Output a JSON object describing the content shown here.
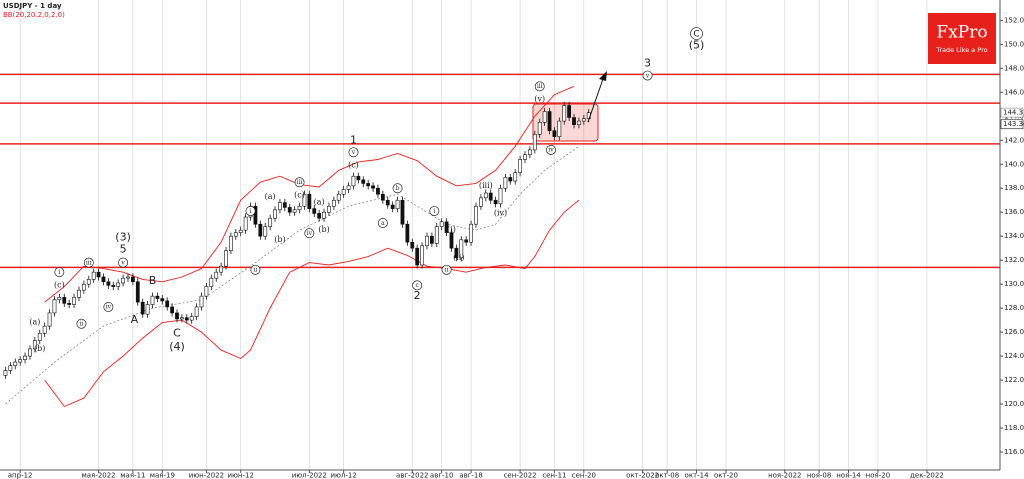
{
  "chart_data": {
    "type": "candlestick",
    "title": "USDJPY - 1 day",
    "subtitle": "BB(20,20.2,0,2.0)",
    "logo": {
      "name": "FxPro",
      "tagline": "Trade Like a Pro"
    },
    "open": [
      122.4,
      122.8,
      123.2,
      123.5,
      123.7,
      124.0,
      124.6,
      125.3,
      125.9,
      126.5,
      127.6,
      128.7,
      128.9,
      128.4,
      128.3,
      128.9,
      129.5,
      130.0,
      130.4,
      131.0,
      130.6,
      130.2,
      129.9,
      129.8,
      130.1,
      130.5,
      130.6,
      130.2,
      128.5,
      127.5,
      128.3,
      129.0,
      128.8,
      128.6,
      128.1,
      127.6,
      127.1,
      127.2,
      127.0,
      127.3,
      128.1,
      129.0,
      129.8,
      130.5,
      131.0,
      131.5,
      132.8,
      134.0,
      134.3,
      134.5,
      135.6,
      136.5,
      135.0,
      134.0,
      134.8,
      135.5,
      136.2,
      136.8,
      136.4,
      136.0,
      136.2,
      136.5,
      137.5,
      136.3,
      135.9,
      135.5,
      136.0,
      136.5,
      137.0,
      137.5,
      137.9,
      138.2,
      139.0,
      138.7,
      138.4,
      138.2,
      138.0,
      137.5,
      137.0,
      136.6,
      136.3,
      137.0,
      135.0,
      133.5,
      133.0,
      131.6,
      133.2,
      134.0,
      133.4,
      134.8,
      135.2,
      134.3,
      133.0,
      132.2,
      133.7,
      133.5,
      135.0,
      136.5,
      137.2,
      137.6,
      137.0,
      136.7,
      138.0,
      138.9,
      138.6,
      139.3,
      140.4,
      140.8,
      141.2,
      142.5,
      143.5,
      144.4,
      142.8,
      142.3,
      143.6,
      144.9,
      143.9,
      143.3,
      143.6,
      143.8
    ],
    "high": [
      123.1,
      123.5,
      123.8,
      124.0,
      124.3,
      124.9,
      125.6,
      126.2,
      126.8,
      127.9,
      129.0,
      129.2,
      129.2,
      128.7,
      129.2,
      129.8,
      130.3,
      130.7,
      131.3,
      131.3,
      130.9,
      130.5,
      130.2,
      130.4,
      130.8,
      130.9,
      130.9,
      130.5,
      128.8,
      128.6,
      129.3,
      129.3,
      129.1,
      128.9,
      128.4,
      127.9,
      127.5,
      127.5,
      127.6,
      128.4,
      129.3,
      130.1,
      130.8,
      131.3,
      131.8,
      133.1,
      134.3,
      134.6,
      134.8,
      135.9,
      136.8,
      136.8,
      135.3,
      135.1,
      135.8,
      136.5,
      137.1,
      137.1,
      136.7,
      136.5,
      136.8,
      137.8,
      137.8,
      136.6,
      136.2,
      136.3,
      136.8,
      137.3,
      137.8,
      138.2,
      138.5,
      139.3,
      139.3,
      139.0,
      138.7,
      138.5,
      138.3,
      137.8,
      137.3,
      136.9,
      137.3,
      137.3,
      135.3,
      133.8,
      133.3,
      133.5,
      134.3,
      134.3,
      135.1,
      135.5,
      135.5,
      134.6,
      133.3,
      134.0,
      134.0,
      135.3,
      136.8,
      137.5,
      137.9,
      137.9,
      137.3,
      138.3,
      139.2,
      139.2,
      139.6,
      140.7,
      141.1,
      141.5,
      142.8,
      143.8,
      144.7,
      144.7,
      143.1,
      143.9,
      145.2,
      145.2,
      144.2,
      143.9,
      144.1,
      144.6
    ],
    "low": [
      122.1,
      122.5,
      122.9,
      123.2,
      123.4,
      123.7,
      124.3,
      125.0,
      125.6,
      126.2,
      127.3,
      128.4,
      128.1,
      128.0,
      128.0,
      128.6,
      129.2,
      129.7,
      130.1,
      130.3,
      129.9,
      129.6,
      129.5,
      129.5,
      129.8,
      130.2,
      129.9,
      128.2,
      127.2,
      127.2,
      128.0,
      128.5,
      128.3,
      127.8,
      127.3,
      126.8,
      126.8,
      126.7,
      126.7,
      127.0,
      127.8,
      128.7,
      129.5,
      130.2,
      130.7,
      131.2,
      132.5,
      133.7,
      134.0,
      134.2,
      135.3,
      134.7,
      133.7,
      133.7,
      134.5,
      135.2,
      135.9,
      136.1,
      135.7,
      135.7,
      135.9,
      136.2,
      136.0,
      135.6,
      135.2,
      135.2,
      135.7,
      136.2,
      136.7,
      137.2,
      137.6,
      137.9,
      138.4,
      138.1,
      137.9,
      137.7,
      137.2,
      136.7,
      136.3,
      136.0,
      136.0,
      134.7,
      133.2,
      132.7,
      131.3,
      131.3,
      132.9,
      133.1,
      133.1,
      134.5,
      134.0,
      132.7,
      131.9,
      131.9,
      133.2,
      133.2,
      134.7,
      136.2,
      136.9,
      136.7,
      136.4,
      136.4,
      137.7,
      138.3,
      138.3,
      139.0,
      140.1,
      140.5,
      140.9,
      142.2,
      143.2,
      142.5,
      142.0,
      142.0,
      143.3,
      143.6,
      143.0,
      143.0,
      143.3,
      143.5
    ],
    "close": [
      122.8,
      123.2,
      123.5,
      123.7,
      124.0,
      124.6,
      125.3,
      125.9,
      126.5,
      127.6,
      128.7,
      128.9,
      128.4,
      128.3,
      128.9,
      129.5,
      130.0,
      130.4,
      131.0,
      130.6,
      130.2,
      129.9,
      129.8,
      130.1,
      130.5,
      130.6,
      130.2,
      128.5,
      127.5,
      128.3,
      129.0,
      128.8,
      128.6,
      128.1,
      127.6,
      127.1,
      127.2,
      127.0,
      127.3,
      128.1,
      129.0,
      129.8,
      130.5,
      131.0,
      131.5,
      132.8,
      134.0,
      134.3,
      134.5,
      135.6,
      136.5,
      135.0,
      134.0,
      134.8,
      135.5,
      136.2,
      136.8,
      136.4,
      136.0,
      136.2,
      136.5,
      137.5,
      136.3,
      135.9,
      135.5,
      136.0,
      136.5,
      137.0,
      137.5,
      137.9,
      138.2,
      139.0,
      138.7,
      138.4,
      138.2,
      138.0,
      137.5,
      137.0,
      136.6,
      136.3,
      137.0,
      135.0,
      133.5,
      133.0,
      131.6,
      133.2,
      134.0,
      133.4,
      134.8,
      135.2,
      134.3,
      133.0,
      132.2,
      133.7,
      133.5,
      135.0,
      136.5,
      137.2,
      137.6,
      137.0,
      136.7,
      138.0,
      138.9,
      138.6,
      139.3,
      140.4,
      140.8,
      141.2,
      142.5,
      143.5,
      144.4,
      142.8,
      142.3,
      143.6,
      144.9,
      143.9,
      143.3,
      143.6,
      143.8,
      144.3
    ],
    "up_color": "#ffffff",
    "down_color": "#111111",
    "bollinger": {
      "upper": {
        "color": "#e8201c",
        "x": [
          8,
          12,
          16,
          20,
          24,
          28,
          32,
          36,
          40,
          44,
          48,
          52,
          56,
          60,
          64,
          68,
          72,
          76,
          80,
          84,
          88,
          92,
          96,
          100,
          104,
          108,
          112,
          116
        ],
        "values": [
          128.5,
          129.8,
          131.5,
          131.3,
          131.0,
          130.4,
          130.2,
          130.6,
          131.3,
          133.5,
          137.0,
          138.5,
          139.0,
          138.3,
          138.1,
          139.5,
          140.2,
          140.4,
          140.9,
          140.3,
          139.0,
          138.2,
          138.4,
          139.5,
          141.5,
          144.0,
          145.8,
          146.5
        ]
      },
      "middle": {
        "color": "#777777",
        "x": [
          0,
          10,
          20,
          30,
          40,
          50,
          60,
          70,
          80,
          84,
          90,
          96,
          100,
          105,
          110,
          117
        ],
        "values": [
          120.0,
          123.5,
          126.5,
          128.0,
          128.7,
          131.5,
          134.5,
          136.5,
          137.5,
          136.5,
          135.0,
          134.5,
          135.0,
          137.5,
          139.5,
          141.5
        ]
      },
      "lower": {
        "color": "#e8201c",
        "x": [
          8,
          12,
          16,
          20,
          24,
          28,
          32,
          36,
          40,
          44,
          48,
          50,
          54,
          58,
          62,
          66,
          70,
          74,
          78,
          82,
          86,
          90,
          94,
          98,
          102,
          106,
          108,
          111,
          114,
          117
        ],
        "values": [
          122.0,
          119.8,
          120.5,
          122.7,
          124.0,
          125.5,
          126.8,
          127.0,
          126.0,
          124.5,
          123.8,
          124.5,
          128.0,
          131.0,
          131.8,
          131.6,
          131.9,
          132.3,
          133.0,
          132.4,
          131.5,
          131.3,
          131.0,
          131.4,
          131.6,
          131.3,
          132.3,
          134.5,
          136.0,
          137.0
        ]
      }
    },
    "levels": [
      147.5,
      145.1,
      141.7,
      131.4
    ],
    "level_color": "#e8201c",
    "price_tags": [
      144.31,
      143.34
    ],
    "xlim": [
      -0.5,
      202.5
    ],
    "ylim": [
      114.5,
      153.7
    ],
    "yticks": [
      {
        "value": 116,
        "label": "116.00"
      },
      {
        "value": 118,
        "label": "118.00"
      },
      {
        "value": 120,
        "label": "120.00"
      },
      {
        "value": 122,
        "label": "122.00"
      },
      {
        "value": 124,
        "label": "124.00"
      },
      {
        "value": 126,
        "label": "126.00"
      },
      {
        "value": 128,
        "label": "128.00"
      },
      {
        "value": 130,
        "label": "130.00"
      },
      {
        "value": 132,
        "label": "132.00"
      },
      {
        "value": 134,
        "label": "134.00"
      },
      {
        "value": 136,
        "label": "136.00"
      },
      {
        "value": 138,
        "label": "138.00"
      },
      {
        "value": 140,
        "label": "140.00"
      },
      {
        "value": 142,
        "label": "142.00"
      },
      {
        "value": 144,
        "label": "144.00"
      },
      {
        "value": 146,
        "label": "146.00"
      },
      {
        "value": 148,
        "label": "148.00"
      },
      {
        "value": 150,
        "label": "150.00"
      },
      {
        "value": 152,
        "label": "152.00"
      }
    ],
    "xticks": [
      {
        "value": 3,
        "label": "апр-12"
      },
      {
        "value": 19,
        "label": "мая-2022"
      },
      {
        "value": 26,
        "label": "мая-11"
      },
      {
        "value": 32,
        "label": "мая-19"
      },
      {
        "value": 41,
        "label": "июн-2022"
      },
      {
        "value": 48,
        "label": "июн-12"
      },
      {
        "value": 62,
        "label": "июл-2022"
      },
      {
        "value": 69,
        "label": "июл-12"
      },
      {
        "value": 83,
        "label": "авг-2022"
      },
      {
        "value": 89,
        "label": "авг-10"
      },
      {
        "value": 95,
        "label": "авг-18"
      },
      {
        "value": 105,
        "label": "сен-2022"
      },
      {
        "value": 112,
        "label": "сен-11"
      },
      {
        "value": 118,
        "label": "сен-20"
      },
      {
        "value": 130,
        "label": "окт-2022"
      },
      {
        "value": 135,
        "label": "окт-08"
      },
      {
        "value": 141,
        "label": "окт-14"
      },
      {
        "value": 147,
        "label": "окт-20"
      },
      {
        "value": 159,
        "label": "ноя-2022"
      },
      {
        "value": 166,
        "label": "ноя-08"
      },
      {
        "value": 172,
        "label": "ноя-14"
      },
      {
        "value": 178,
        "label": "ноя-20"
      },
      {
        "value": 188,
        "label": "дек-2022"
      }
    ],
    "grid": true,
    "annotations": [
      {
        "text": "(a)",
        "x": 6,
        "y": 126.8,
        "style": "small"
      },
      {
        "text": "(b)",
        "x": 7,
        "y": 124.6,
        "style": "small"
      },
      {
        "text": "(c)",
        "x": 11,
        "y": 129.9,
        "style": "small"
      },
      {
        "text": "i",
        "x": 11,
        "y": 131.0,
        "style": "circled"
      },
      {
        "text": "ii",
        "x": 15.5,
        "y": 126.7,
        "style": "circled"
      },
      {
        "text": "iii",
        "x": 17,
        "y": 131.8,
        "style": "circled"
      },
      {
        "text": "iv",
        "x": 21,
        "y": 128.1,
        "style": "circled"
      },
      {
        "text": "v",
        "x": 24,
        "y": 131.8,
        "style": "circled"
      },
      {
        "text": "(3)",
        "x": 24,
        "y": 133.9,
        "style": "large"
      },
      {
        "text": "5",
        "x": 24,
        "y": 132.9,
        "style": "large"
      },
      {
        "text": "A",
        "x": 26.3,
        "y": 127.0,
        "style": "large"
      },
      {
        "text": "B",
        "x": 30,
        "y": 130.25,
        "style": "large"
      },
      {
        "text": "C",
        "x": 35,
        "y": 125.9,
        "style": "large"
      },
      {
        "text": "(4)",
        "x": 35,
        "y": 124.75,
        "style": "large"
      },
      {
        "text": "i",
        "x": 50,
        "y": 136.1,
        "style": "circled"
      },
      {
        "text": "ii",
        "x": 51,
        "y": 131.2,
        "style": "circled"
      },
      {
        "text": "(a)",
        "x": 54,
        "y": 137.25,
        "style": "small"
      },
      {
        "text": "(b)",
        "x": 56,
        "y": 133.7,
        "style": "small"
      },
      {
        "text": "iii",
        "x": 60,
        "y": 138.5,
        "style": "circled"
      },
      {
        "text": "(c)",
        "x": 60,
        "y": 137.4,
        "style": "small"
      },
      {
        "text": "iv",
        "x": 62,
        "y": 134.25,
        "style": "circled"
      },
      {
        "text": "(a)",
        "x": 64,
        "y": 136.8,
        "style": "small"
      },
      {
        "text": "(b)",
        "x": 65,
        "y": 134.5,
        "style": "small"
      },
      {
        "text": "1",
        "x": 71,
        "y": 142.0,
        "style": "large"
      },
      {
        "text": "v",
        "x": 71,
        "y": 141.0,
        "style": "circled"
      },
      {
        "text": "(c)",
        "x": 71,
        "y": 139.9,
        "style": "small"
      },
      {
        "text": "a",
        "x": 77,
        "y": 135.1,
        "style": "circled"
      },
      {
        "text": "b",
        "x": 80,
        "y": 138.0,
        "style": "circled"
      },
      {
        "text": "c",
        "x": 84,
        "y": 129.9,
        "style": "circled"
      },
      {
        "text": "2",
        "x": 84,
        "y": 129.0,
        "style": "large"
      },
      {
        "text": "i",
        "x": 87.5,
        "y": 136.1,
        "style": "circled"
      },
      {
        "text": "(i)",
        "x": 91,
        "y": 134.5,
        "style": "small"
      },
      {
        "text": "ii",
        "x": 90,
        "y": 131.2,
        "style": "circled"
      },
      {
        "text": "(ii)",
        "x": 92.5,
        "y": 132.2,
        "style": "small"
      },
      {
        "text": "(iii)",
        "x": 98,
        "y": 138.2,
        "style": "small"
      },
      {
        "text": "(iv)",
        "x": 101,
        "y": 135.9,
        "style": "small"
      },
      {
        "text": "iii",
        "x": 109,
        "y": 146.5,
        "style": "circled"
      },
      {
        "text": "(v)",
        "x": 109,
        "y": 145.4,
        "style": "small"
      },
      {
        "text": "iv",
        "x": 111.3,
        "y": 141.2,
        "style": "circled"
      },
      {
        "text": "3",
        "x": 131,
        "y": 148.4,
        "style": "large"
      },
      {
        "text": "v",
        "x": 131,
        "y": 147.4,
        "style": "circled"
      },
      {
        "text": "C",
        "x": 141,
        "y": 150.9,
        "style": "circled-large"
      },
      {
        "text": "(5)",
        "x": 141,
        "y": 149.9,
        "style": "large"
      }
    ]
  }
}
